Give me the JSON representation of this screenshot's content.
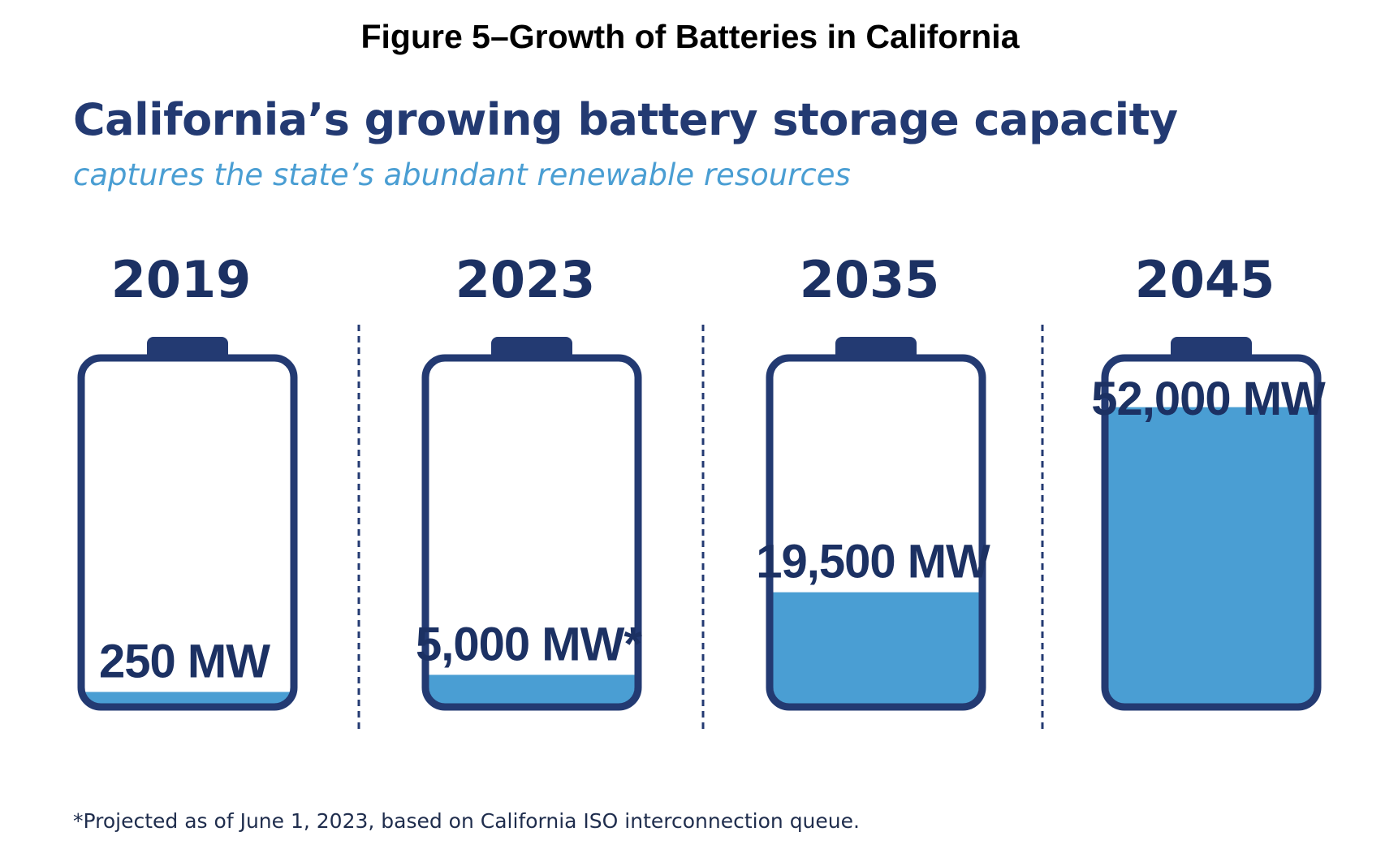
{
  "figure_caption": "Figure 5–Growth of Batteries in California",
  "colors": {
    "navy": "#233a72",
    "fill_blue": "#4a9ed3",
    "text_dark": "#1c3163"
  },
  "chart_data": {
    "type": "bar",
    "title": "California’s growing battery storage capacity",
    "subtitle": "captures the state’s abundant renewable resources",
    "categories": [
      "2019",
      "2023",
      "2035",
      "2045"
    ],
    "values": [
      250,
      5000,
      19500,
      52000
    ],
    "value_labels": [
      "250 MW",
      "5,000 MW*",
      "19,500 MW",
      "52,000 MW"
    ],
    "unit": "MW",
    "ylim": [
      0,
      60000
    ],
    "footnote": "*Projected as of June 1, 2023, based on California ISO interconnection queue."
  }
}
